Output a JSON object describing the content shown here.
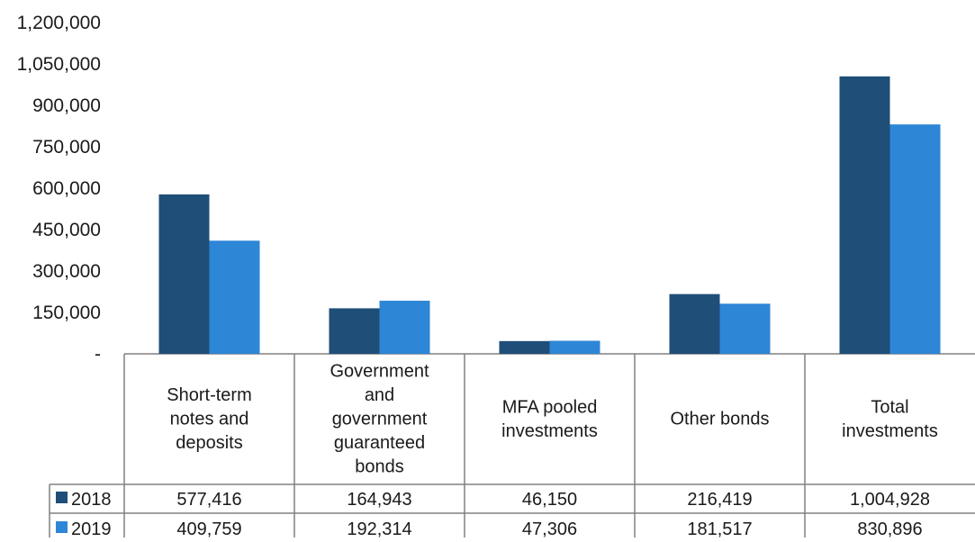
{
  "chart_data": {
    "type": "bar",
    "title": "",
    "xlabel": "",
    "ylabel": "",
    "ylim": [
      0,
      1200000
    ],
    "y_ticks": [
      0,
      150000,
      300000,
      450000,
      600000,
      750000,
      900000,
      1050000,
      1200000
    ],
    "y_tick_labels": [
      "-",
      "150,000",
      "300,000",
      "450,000",
      "600,000",
      "750,000",
      "900,000",
      "1,050,000",
      "1,200,000"
    ],
    "grid": false,
    "legend": "data-table",
    "categories": [
      [
        "Short-term",
        "notes and",
        "deposits"
      ],
      [
        "Government",
        "and",
        "government",
        "guaranteed",
        "bonds"
      ],
      [
        "MFA pooled",
        "investments"
      ],
      [
        "Other bonds"
      ],
      [
        "Total",
        "investments"
      ]
    ],
    "series": [
      {
        "name": "2018",
        "color": "#1f4e79",
        "values": [
          577416,
          164943,
          46150,
          216419,
          1004928
        ],
        "value_labels": [
          "577,416",
          "164,943",
          "46,150",
          "216,419",
          "1,004,928"
        ]
      },
      {
        "name": "2019",
        "color": "#2e86d6",
        "values": [
          409759,
          192314,
          47306,
          181517,
          830896
        ],
        "value_labels": [
          "409,759",
          "192,314",
          "47,306",
          "181,517",
          "830,896"
        ]
      }
    ]
  }
}
